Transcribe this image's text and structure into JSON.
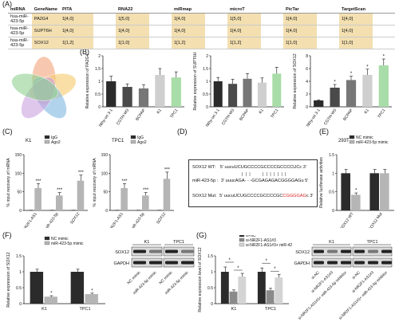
{
  "panels": {
    "A": "(A)",
    "B": "(B)",
    "C": "(C)",
    "D": "(D)",
    "E": "(E)",
    "F": "(F)",
    "G": "(G)"
  },
  "table_a": {
    "headers": [
      "miRNA",
      "GeneName",
      "PITA",
      "RNA22",
      "miRmap",
      "microT",
      "PicTar",
      "TargetScan"
    ],
    "rows": [
      [
        "hsa-miR-423-5p",
        "PA2G4",
        "1[4,0]",
        "1[5,0]",
        "1[4,0]",
        "1[5,0]",
        "1[4,0]",
        "1[4,0]"
      ],
      [
        "hsa-miR-423-5p",
        "SUPT6H",
        "1[4,0]",
        "1[4,0]",
        "1[4,0]",
        "1[4,0]",
        "1[4,0]",
        "1[4,0]"
      ],
      [
        "hsa-miR-423-5p",
        "SOX12",
        "1[1,2]",
        "1[1,0]",
        "1[1,2]",
        "1[1,2]",
        "1[1,0]",
        "1[1,0]"
      ]
    ]
  },
  "chart_data": [
    {
      "id": "B1",
      "type": "bar",
      "ylabel": "Relative expression of PA2G4",
      "categories": [
        "Nthy-ori 3-1",
        "CGTH-W3",
        "BCPAP",
        "K1",
        "TPC1"
      ],
      "values": [
        1.0,
        0.78,
        0.72,
        1.25,
        1.15
      ],
      "errors": [
        0.2,
        0.12,
        0.15,
        0.25,
        0.22
      ],
      "ylim": [
        0,
        2.0
      ],
      "yticks": [
        0,
        0.5,
        1.0,
        1.5,
        2.0
      ],
      "colors": [
        "#2b2b2b",
        "#4a4a4a",
        "#777777",
        "#cfcfcf",
        "#a8dca8"
      ],
      "stars": [
        "",
        "",
        "",
        "",
        ""
      ]
    },
    {
      "id": "B2",
      "type": "bar",
      "ylabel": "Relative expression of SUPT6H",
      "categories": [
        "Nthy-ori 3-1",
        "CGTH-W3",
        "BCPAP",
        "K1",
        "TPC1"
      ],
      "values": [
        1.0,
        0.9,
        1.1,
        0.95,
        1.3
      ],
      "errors": [
        0.15,
        0.18,
        0.2,
        0.18,
        0.25
      ],
      "ylim": [
        0,
        2.0
      ],
      "yticks": [
        0,
        0.5,
        1.0,
        1.5,
        2.0
      ],
      "colors": [
        "#2b2b2b",
        "#4a4a4a",
        "#777777",
        "#cfcfcf",
        "#a8dca8"
      ],
      "stars": [
        "",
        "",
        "",
        "",
        ""
      ]
    },
    {
      "id": "B3",
      "type": "bar",
      "ylabel": "Relative expression of SOX12",
      "categories": [
        "Nthy-ori 3-1",
        "CGTH-W3",
        "BCPAP",
        "K1",
        "TPC1"
      ],
      "values": [
        1.0,
        3.0,
        4.2,
        5.0,
        6.5
      ],
      "errors": [
        0.1,
        0.5,
        0.6,
        0.9,
        1.0
      ],
      "ylim": [
        0,
        8
      ],
      "yticks": [
        0,
        2,
        4,
        6,
        8
      ],
      "colors": [
        "#2b2b2b",
        "#4a4a4a",
        "#777777",
        "#cfcfcf",
        "#a8dca8"
      ],
      "stars": [
        "",
        "*",
        "*",
        "*",
        "*"
      ]
    },
    {
      "id": "C1",
      "type": "bar",
      "title": "K1",
      "ylabel": "% input recovery of mRNA",
      "categories": [
        "NR2F1-AS1",
        "miR-423-5p",
        "SOX12"
      ],
      "series": [
        {
          "name": "IgG",
          "values": [
            0.5,
            0.5,
            0.5
          ],
          "errors": [
            0.1,
            0.1,
            0.1
          ],
          "color": "#2b2b2b"
        },
        {
          "name": "Ago2",
          "values": [
            60,
            40,
            80
          ],
          "errors": [
            12,
            8,
            15
          ],
          "color": "#b5b5b5"
        }
      ],
      "ylim": [
        0,
        150
      ],
      "yticks": [
        0,
        50,
        100,
        150
      ],
      "stars": [
        "***",
        "***",
        "***"
      ]
    },
    {
      "id": "C2",
      "type": "bar",
      "title": "TPC1",
      "ylabel": "% input recovery of mRNA",
      "categories": [
        "NR2F1-AS1",
        "miR-423-5p",
        "SOX12"
      ],
      "series": [
        {
          "name": "IgG",
          "values": [
            0.5,
            0.5,
            0.5
          ],
          "errors": [
            0.1,
            0.1,
            0.1
          ],
          "color": "#2b2b2b"
        },
        {
          "name": "Ago2",
          "values": [
            60,
            40,
            85
          ],
          "errors": [
            12,
            8,
            18
          ],
          "color": "#b5b5b5"
        }
      ],
      "ylim": [
        0,
        150
      ],
      "yticks": [
        0,
        50,
        100,
        150
      ],
      "stars": [
        "***",
        "***",
        "***"
      ]
    },
    {
      "id": "E",
      "type": "bar",
      "title": "293T",
      "ylabel": "Relative luciferase activities",
      "categories": [
        "SOX12 WT",
        "SOX12 Mut"
      ],
      "series": [
        {
          "name": "NC mimic",
          "values": [
            1.0,
            1.0
          ],
          "errors": [
            0.1,
            0.1
          ],
          "color": "#2b2b2b"
        },
        {
          "name": "miR-423-5p mimic",
          "values": [
            0.42,
            1.0
          ],
          "errors": [
            0.05,
            0.1
          ],
          "color": "#b5b5b5"
        }
      ],
      "ylim": [
        0,
        1.5
      ],
      "yticks": [
        0.0,
        0.5,
        1.0,
        1.5
      ],
      "stars": [
        "*",
        ""
      ]
    },
    {
      "id": "F",
      "type": "bar",
      "ylabel": "Relative expression of SOX12",
      "categories": [
        "K1",
        "TPC1"
      ],
      "series": [
        {
          "name": "NC mimic",
          "values": [
            1.0,
            1.0
          ],
          "errors": [
            0.08,
            0.08
          ],
          "color": "#2b2b2b"
        },
        {
          "name": "miR-423-5p mimic",
          "values": [
            0.22,
            0.3
          ],
          "errors": [
            0.03,
            0.03
          ],
          "color": "#b5b5b5"
        }
      ],
      "ylim": [
        0,
        1.5
      ],
      "yticks": [
        0.0,
        0.5,
        1.0,
        1.5
      ],
      "stars": [
        "*",
        "*"
      ]
    },
    {
      "id": "G",
      "type": "bar",
      "ylabel": "Relative expression level of SOX12",
      "categories": [
        "K1",
        "TPC1"
      ],
      "series": [
        {
          "name": "si-NC",
          "values": [
            1.0,
            1.0
          ],
          "errors": [
            0.15,
            0.12
          ],
          "color": "#2b2b2b"
        },
        {
          "name": "si-NR2F1-AS1#3",
          "values": [
            0.38,
            0.42
          ],
          "errors": [
            0.05,
            0.06
          ],
          "color": "#8a8a8a"
        },
        {
          "name": "si-NR2F1-AS1#3+ miR-423-5p inhibitor",
          "values": [
            0.85,
            0.82
          ],
          "errors": [
            0.1,
            0.1
          ],
          "color": "#d4d4d4"
        }
      ],
      "ylim": [
        0,
        1.5
      ],
      "yticks": [
        0.0,
        0.5,
        1.0,
        1.5
      ],
      "stars": [
        "*",
        "*"
      ]
    }
  ],
  "panel_d": {
    "wt_label": "SOX12 WT:",
    "wt_seq": "5'  uucuUCUGCCCCGCCCCGCCCCUCc 3'",
    "mir_label": "miR-423-5p :",
    "mir_seq": "3'  uuucAGA- - -GCGAGAGACGGGGAGu 5'",
    "mut_label": "SOX12 Mut:",
    "mut_seq_a": "5'  uucuUCUGCCCCGCCCCGC",
    "mut_seq_b": "CGGGGAG",
    "mut_seq_c": "c 3'"
  },
  "blot_f": {
    "cells": [
      "K1",
      "TPC1"
    ],
    "rows": [
      "SOX12",
      "GAPDH"
    ],
    "lanes": [
      "NC mimic",
      "miR-423-5p mimic",
      "NC mimic",
      "miR-423-5p mimic"
    ]
  },
  "blot_g": {
    "cells": [
      "K1",
      "TPC1"
    ],
    "rows": [
      "SOX12",
      "GAPDH"
    ],
    "lanes": [
      "si-NC",
      "si-NR2F1-AS1#3",
      "si-NR2F1-AS1#3+ miR-423-5p inhibitor",
      "si-NC",
      "si-NR2F1-AS1#3",
      "si-NR2F1-AS1#3+ miR-423-5p inhibitor"
    ]
  },
  "venn_colors": [
    "#f2a37a",
    "#f5c96a",
    "#7fb6e0",
    "#c9a2e0",
    "#8fd18f"
  ]
}
